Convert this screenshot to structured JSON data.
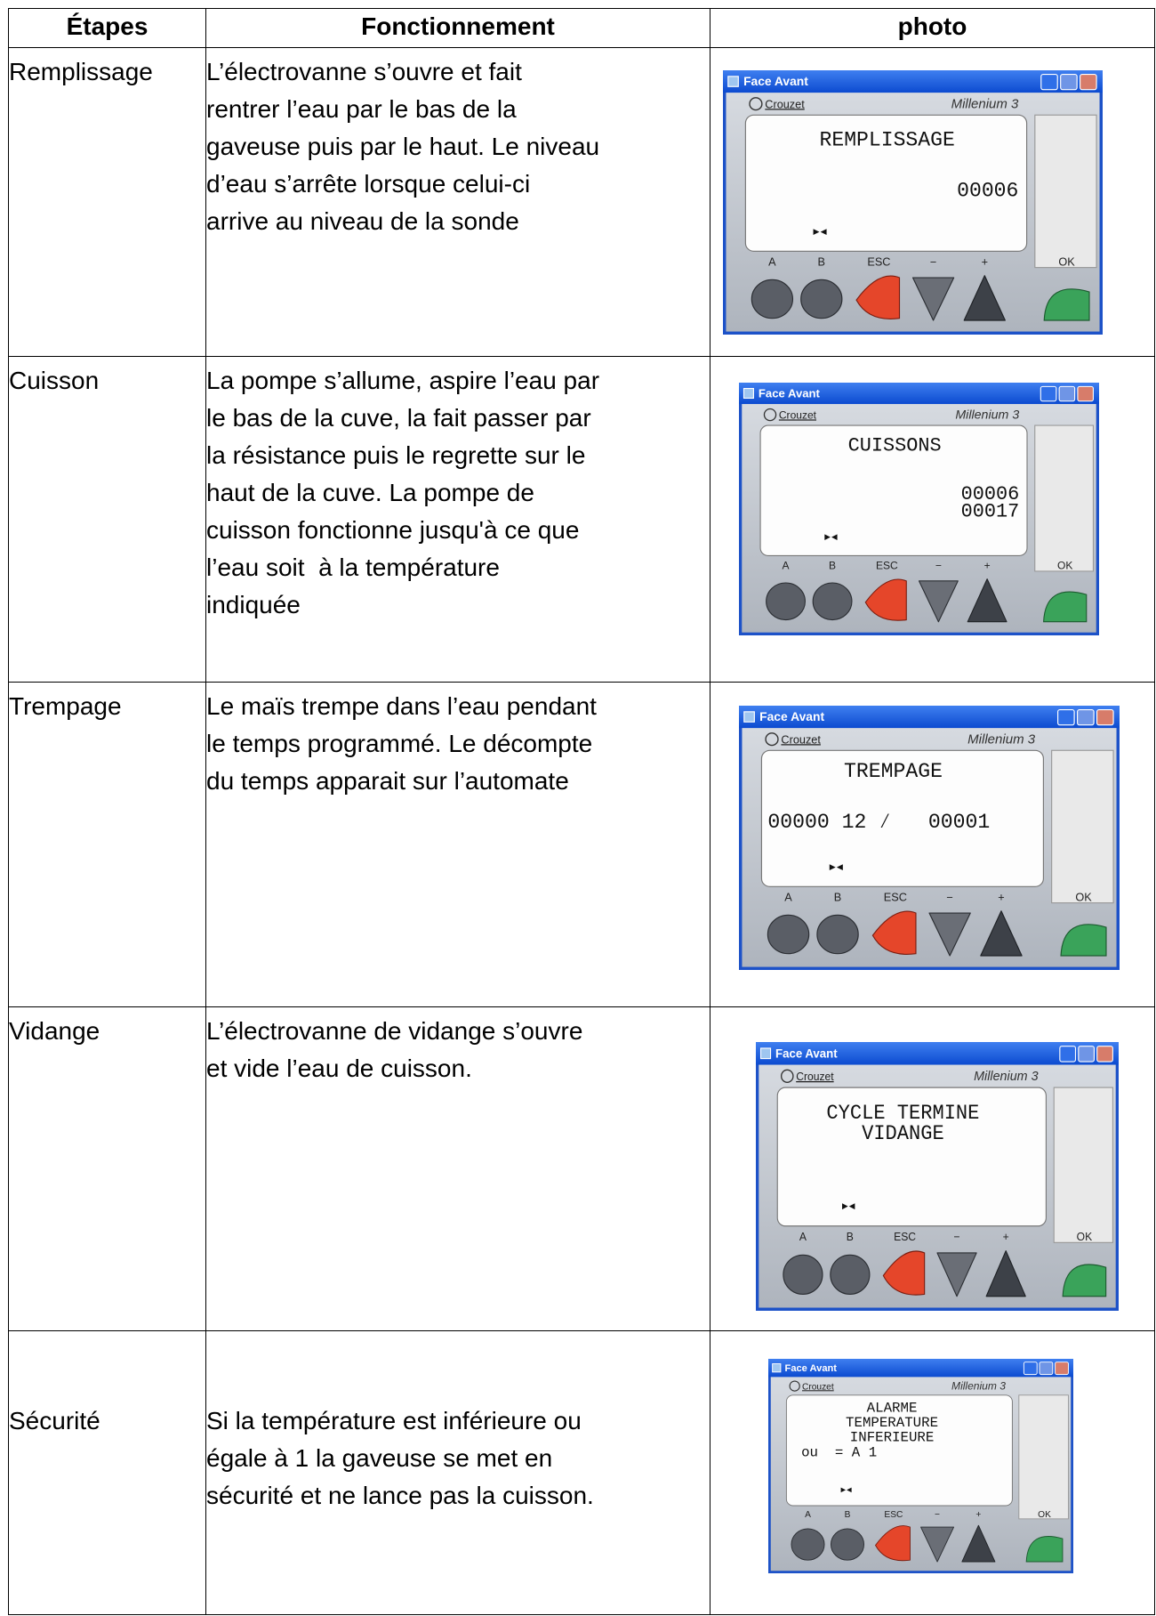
{
  "table": {
    "header": [
      "Étapes",
      "Fonctionnement",
      "photo"
    ],
    "rows": [
      {
        "step": "Remplissage",
        "description": [
          "L’électrovanne s’ouvre et fait",
          "rentrer l’eau par le bas de la",
          "gaveuse puis par le haut. Le niveau",
          "d’eau s’arrête lorsque celui-ci",
          "arrive au niveau de la sonde"
        ],
        "photo": {
          "window_title": "Face Avant",
          "brand": "Crouzet",
          "model": "Millenium 3",
          "screen": [
            "REMPLISSAGE",
            "00006"
          ],
          "buttons": [
            "A",
            "B",
            "ESC",
            "−",
            "+",
            "OK"
          ]
        }
      },
      {
        "step": "Cuisson",
        "description": [
          "La pompe s’allume, aspire l’eau par",
          "le bas de la cuve, la fait passer par",
          "la résistance puis le regrette sur le",
          "haut de la cuve. La pompe de",
          "cuisson fonctionne jusqu'à ce que",
          "l’eau soit  à la température",
          "indiquée"
        ],
        "photo": {
          "window_title": "Face Avant",
          "brand": "Crouzet",
          "model": "Millenium 3",
          "screen": [
            "CUISSONS",
            "00006",
            "00017"
          ],
          "buttons": [
            "A",
            "B",
            "ESC",
            "−",
            "+",
            "OK"
          ]
        }
      },
      {
        "step": "Trempage",
        "description": [
          "Le maïs trempe dans l’eau pendant",
          "le temps programmé. Le décompte",
          "du temps apparait sur l’automate"
        ],
        "photo": {
          "window_title": "Face Avant",
          "brand": "Crouzet",
          "model": "Millenium 3",
          "screen": [
            "TREMPAGE",
            "00000 12 ⁄   00001"
          ],
          "buttons": [
            "A",
            "B",
            "ESC",
            "−",
            "+",
            "OK"
          ]
        }
      },
      {
        "step": "Vidange",
        "description": [
          "L’électrovanne de vidange s’ouvre",
          "et vide l’eau de cuisson."
        ],
        "photo": {
          "window_title": "Face Avant",
          "brand": "Crouzet",
          "model": "Millenium 3",
          "screen": [
            "CYCLE TERMINE",
            "VIDANGE"
          ],
          "buttons": [
            "A",
            "B",
            "ESC",
            "−",
            "+",
            "OK"
          ]
        }
      },
      {
        "step": "Sécurité",
        "description": [
          "Si la température est inférieure ou",
          "égale à 1 la gaveuse se met en",
          "sécurité et ne lance pas la cuisson."
        ],
        "photo": {
          "window_title": "Face Avant",
          "brand": "Crouzet",
          "model": "Millenium 3",
          "screen": [
            "ALARME",
            "TEMPERATURE",
            "INFERIEURE",
            "ou  = A 1"
          ],
          "buttons": [
            "A",
            "B",
            "ESC",
            "−",
            "+",
            "OK"
          ]
        }
      }
    ]
  }
}
